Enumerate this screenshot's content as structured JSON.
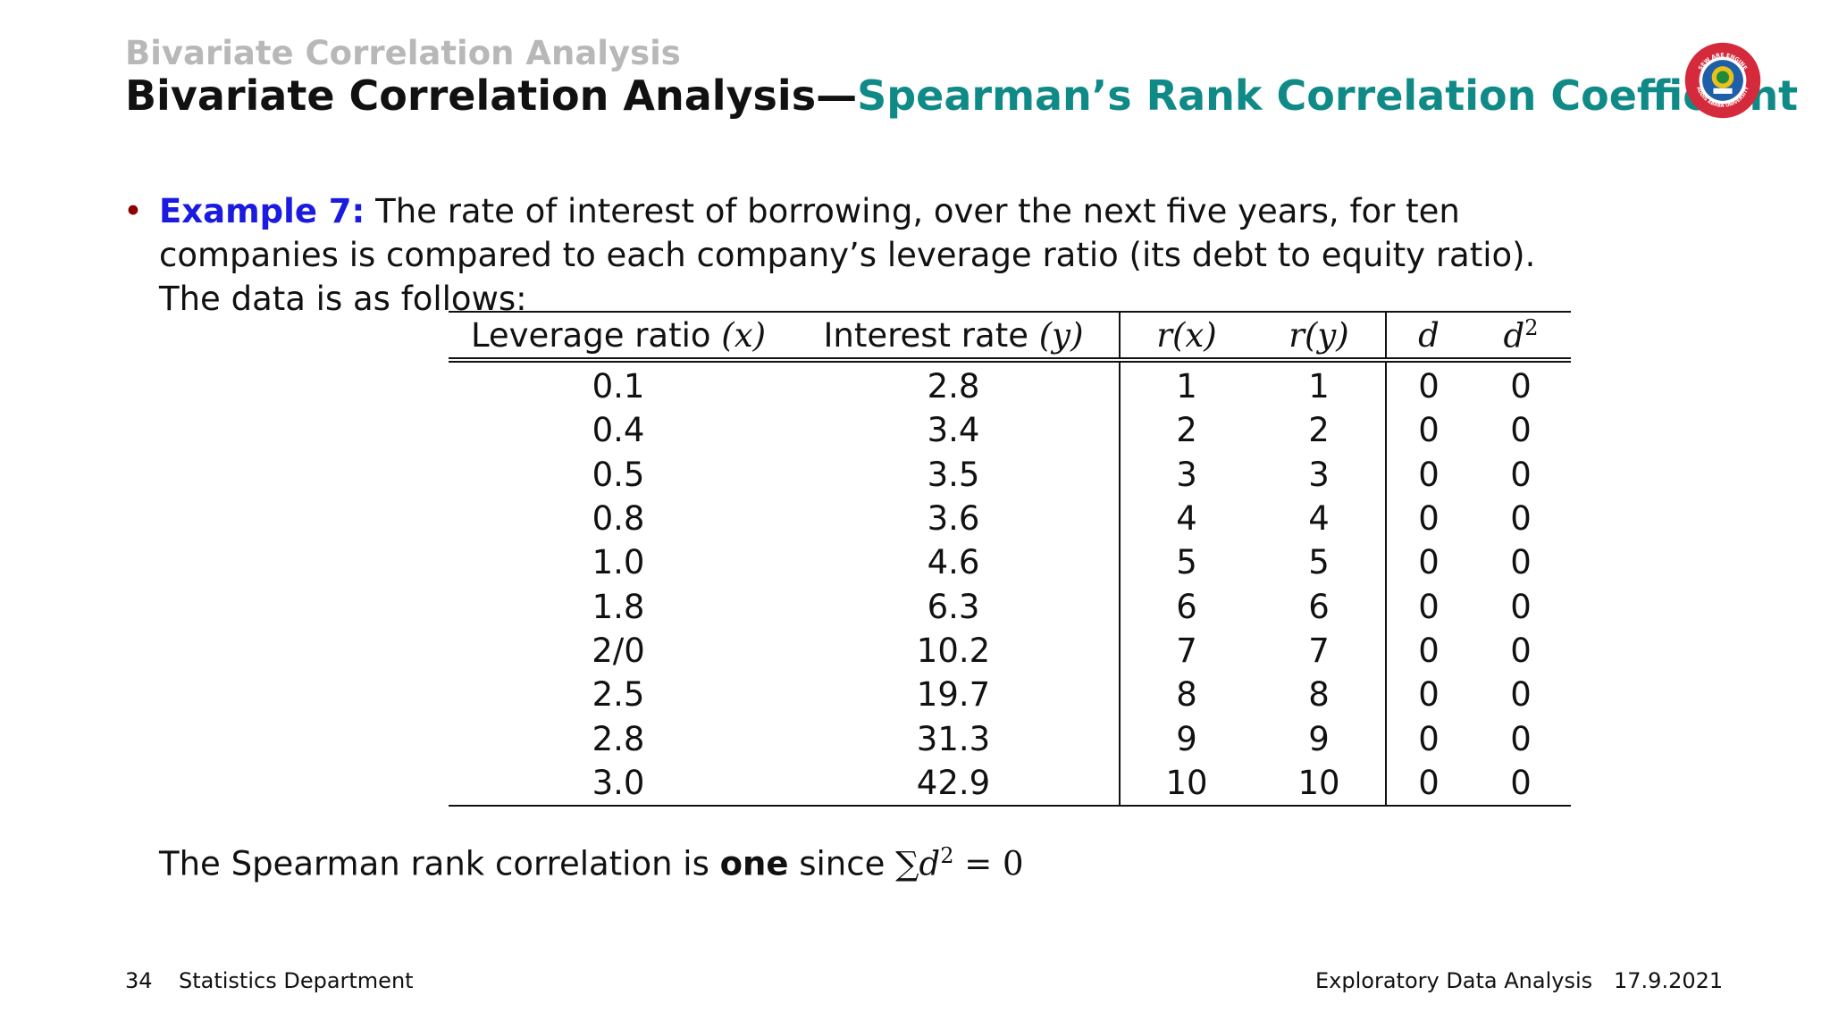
{
  "header": {
    "section": "Bivariate Correlation Analysis",
    "title_main": "Bivariate Correlation Analysis",
    "title_dash": "—",
    "title_sub": "Spearman’s Rank Correlation Coefficient"
  },
  "logo": {
    "name": "university-seal",
    "top_text": "SEW ARE ENGINE",
    "bottom_text": "ADDIS ABABA UNIVERSITY",
    "colors": {
      "ring": "#d42a3c",
      "inner": "#1f5fa8",
      "emblem": "#e8c21a"
    }
  },
  "body": {
    "example_label": "Example 7:",
    "example_text": " The rate of interest of borrowing, over the next five years, for ten companies is compared to each company’s leverage ratio (its debt to equity ratio). The data is as follows:"
  },
  "table": {
    "headers": {
      "leverage": "Leverage ratio ",
      "leverage_math": "(x)",
      "interest": "Interest rate ",
      "interest_math": "(y)",
      "rx": "r(x)",
      "ry": "r(y)",
      "d": "d",
      "d2_base": "d",
      "d2_exp": "2"
    },
    "rows": [
      [
        "0.1",
        "2.8",
        "1",
        "1",
        "0",
        "0"
      ],
      [
        "0.4",
        "3.4",
        "2",
        "2",
        "0",
        "0"
      ],
      [
        "0.5",
        "3.5",
        "3",
        "3",
        "0",
        "0"
      ],
      [
        "0.8",
        "3.6",
        "4",
        "4",
        "0",
        "0"
      ],
      [
        "1.0",
        "4.6",
        "5",
        "5",
        "0",
        "0"
      ],
      [
        "1.8",
        "6.3",
        "6",
        "6",
        "0",
        "0"
      ],
      [
        "2/0",
        "10.2",
        "7",
        "7",
        "0",
        "0"
      ],
      [
        "2.5",
        "19.7",
        "8",
        "8",
        "0",
        "0"
      ],
      [
        "2.8",
        "31.3",
        "9",
        "9",
        "0",
        "0"
      ],
      [
        "3.0",
        "42.9",
        "10",
        "10",
        "0",
        "0"
      ]
    ]
  },
  "conclusion": {
    "prefix": "The Spearman rank correlation is ",
    "bold": "one",
    "suffix": " since ",
    "sum_symbol": "∑",
    "math_base": "d",
    "math_exp": "2",
    "math_rest": " = 0"
  },
  "footer": {
    "page": "34",
    "dept": "Statistics Department",
    "course": "Exploratory Data Analysis",
    "date": "17.9.2021"
  }
}
